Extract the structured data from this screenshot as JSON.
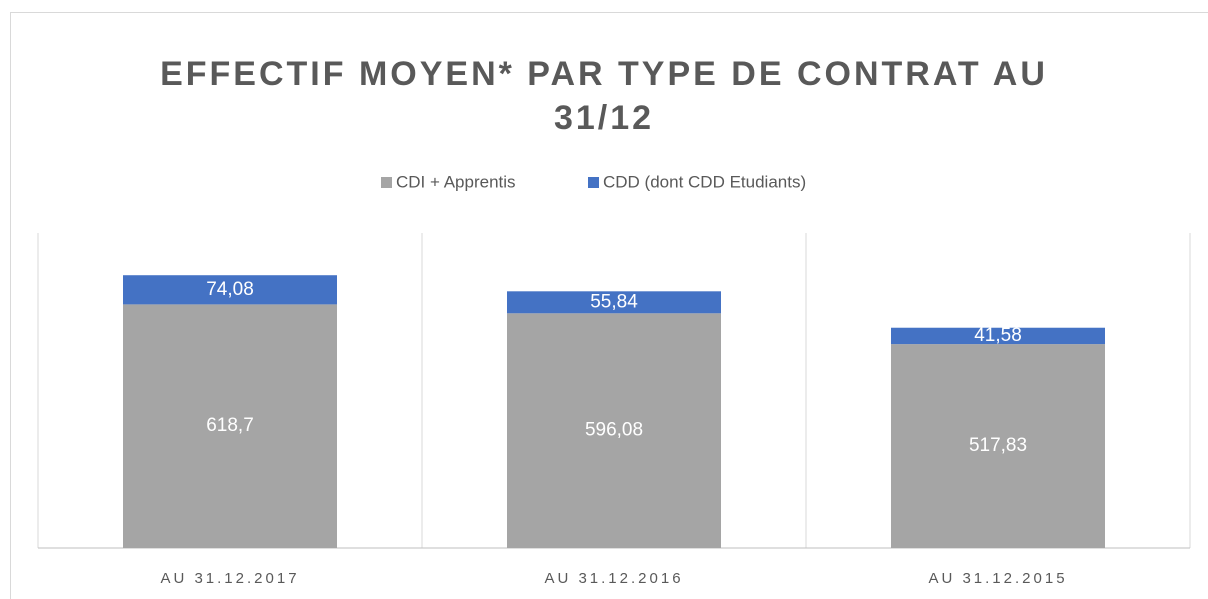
{
  "chart_data": {
    "type": "stacked_bar",
    "title": "EFFECTIF MOYEN* PAR TYPE DE CONTRAT AU 31/12",
    "categories": [
      "AU 31.12.2017",
      "AU 31.12.2016",
      "AU 31.12.2015"
    ],
    "series": [
      {
        "name": "CDI + Apprentis",
        "color": "#a5a5a5",
        "values": [
          618.7,
          596.08,
          517.83
        ],
        "value_labels": [
          "618,7",
          "596,08",
          "517,83"
        ]
      },
      {
        "name": "CDD (dont CDD Etudiants)",
        "color": "#4472c4",
        "values": [
          74.08,
          55.84,
          41.58
        ],
        "value_labels": [
          "74,08",
          "55,84",
          "41,58"
        ]
      }
    ],
    "ylim": [
      0,
      800
    ]
  }
}
